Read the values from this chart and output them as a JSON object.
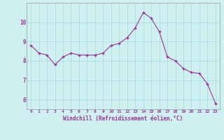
{
  "x": [
    0,
    1,
    2,
    3,
    4,
    5,
    6,
    7,
    8,
    9,
    10,
    11,
    12,
    13,
    14,
    15,
    16,
    17,
    18,
    19,
    20,
    21,
    22,
    23
  ],
  "y": [
    8.8,
    8.4,
    8.3,
    7.8,
    8.2,
    8.4,
    8.3,
    8.3,
    8.3,
    8.4,
    8.8,
    8.9,
    9.2,
    9.7,
    10.5,
    10.2,
    9.5,
    8.2,
    8.0,
    7.6,
    7.4,
    7.35,
    6.8,
    5.8
  ],
  "line_color": "#993399",
  "marker": "+",
  "marker_color": "#993399",
  "bg_color": "#cff0f0",
  "grid_color": "#aadddd",
  "xlabel": "Windchill (Refroidissement éolien,°C)",
  "xlabel_color": "#993399",
  "tick_color": "#993399",
  "yticks": [
    6,
    7,
    8,
    9,
    10
  ],
  "xticks": [
    0,
    1,
    2,
    3,
    4,
    5,
    6,
    7,
    8,
    9,
    10,
    11,
    12,
    13,
    14,
    15,
    16,
    17,
    18,
    19,
    20,
    21,
    22,
    23
  ],
  "ylim": [
    5.5,
    11.0
  ],
  "xlim": [
    -0.5,
    23.5
  ]
}
